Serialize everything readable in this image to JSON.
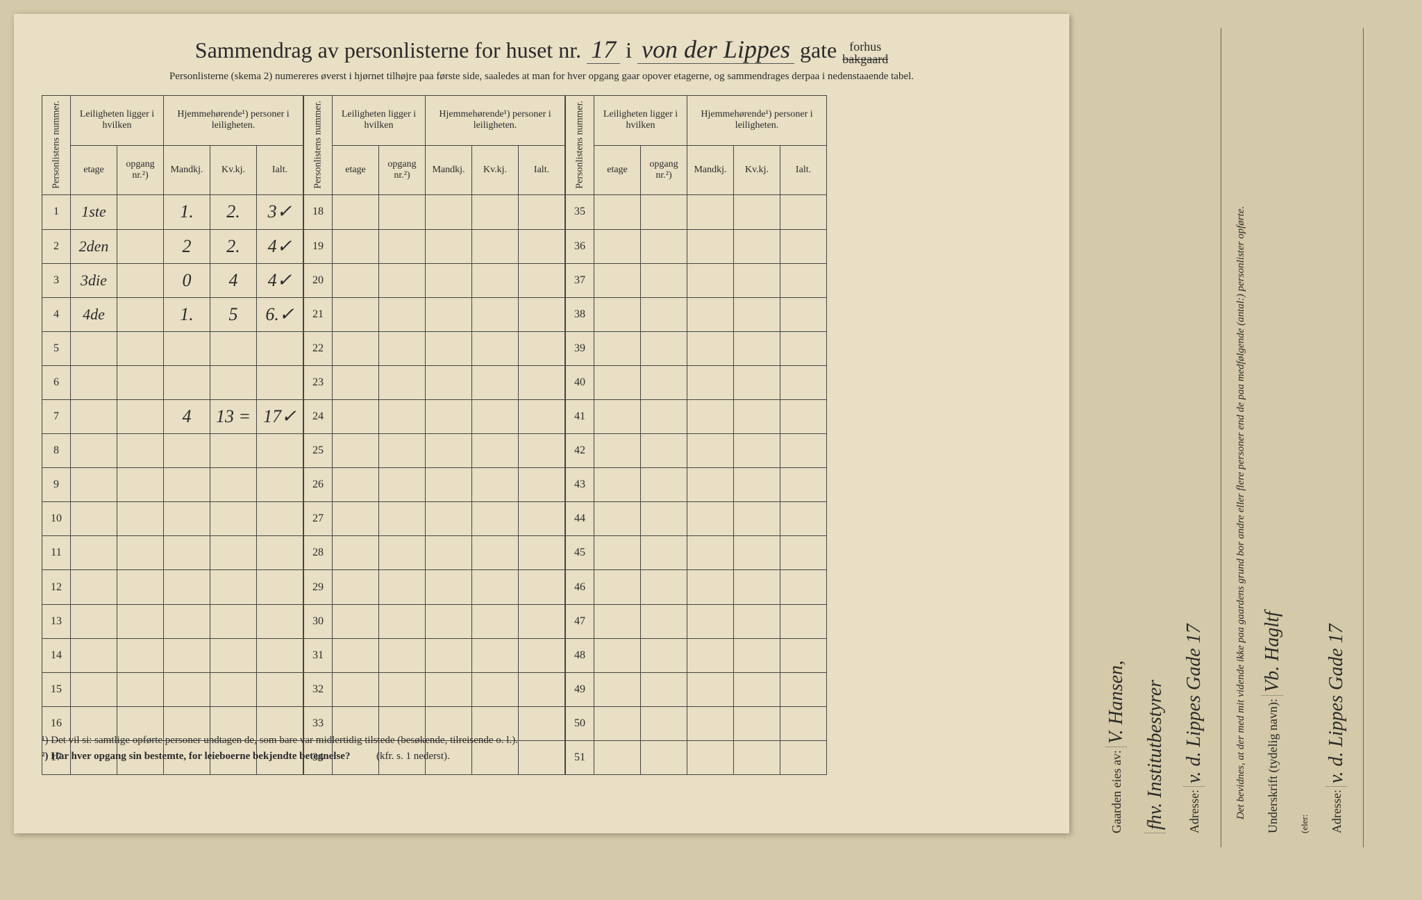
{
  "header": {
    "title_prefix": "Sammendrag av personlisterne for huset nr.",
    "house_nr": "17",
    "middle": "i",
    "street_name": "von der Lippes",
    "street_suffix": "gate",
    "position_top": "forhus",
    "position_bottom_struck": "bakgaard",
    "subtitle": "Personlisterne (skema 2) numereres øverst i hjørnet tilhøjre paa første side, saaledes at man for hver opgang gaar opover etagerne, og sammendrages derpaa i nedenstaaende tabel."
  },
  "columns": {
    "personlist_nr": "Personlistens nummer.",
    "leilighet_group": "Leiligheten ligger i hvilken",
    "etage": "etage",
    "opgang": "opgang nr.²)",
    "hjemme_group": "Hjemmehørende¹) personer i leiligheten.",
    "mandkj": "Mandkj.",
    "kvkj": "Kv.kj.",
    "ialt": "Ialt."
  },
  "block1_rows": [
    1,
    2,
    3,
    4,
    5,
    6,
    7,
    8,
    9,
    10,
    11,
    12,
    13,
    14,
    15,
    16,
    17
  ],
  "block2_rows": [
    18,
    19,
    20,
    21,
    22,
    23,
    24,
    25,
    26,
    27,
    28,
    29,
    30,
    31,
    32,
    33,
    34
  ],
  "block3_rows": [
    35,
    36,
    37,
    38,
    39,
    40,
    41,
    42,
    43,
    44,
    45,
    46,
    47,
    48,
    49,
    50,
    51
  ],
  "data": {
    "1": {
      "etage": "1ste",
      "opgang": "",
      "m": "1.",
      "k": "2.",
      "t": "3✓"
    },
    "2": {
      "etage": "2den",
      "opgang": "",
      "m": "2",
      "k": "2.",
      "t": "4✓"
    },
    "3": {
      "etage": "3die",
      "opgang": "",
      "m": "0",
      "k": "4",
      "t": "4✓"
    },
    "4": {
      "etage": "4de",
      "opgang": "",
      "m": "1.",
      "k": "5",
      "t": "6.✓"
    },
    "7": {
      "etage": "",
      "opgang": "",
      "m": "4",
      "k": "13 =",
      "t": "17✓"
    }
  },
  "footnotes": {
    "f1": "¹) Det vil si: samtlige opførte personer undtagen de, som bare var midlertidig tilstede (besøkende, tilreisende o. l.).",
    "f2": "²) Har hver opgang sin bestemte, for leieboerne bekjendte betegnelse?",
    "f2_ref": "(kfr. s. 1 nederst)."
  },
  "side": {
    "attestation": "Det bevidnes, at der med mit vidende ikke paa gaardens grund bor andre eller flere personer end de paa medfølgende (antal:) personlister opførte.",
    "underskrift_label": "Underskrift (tydelig navn):",
    "underskrift_value": "Vb. Hagltf",
    "eler": "(eler:",
    "adresse_label": "Adresse:",
    "adresse_value": "v. d. Lippes Gade 17",
    "eies_label": "Gaarden eies av:",
    "eies_value": "V. Hansen,",
    "eies_value2": "fhv. Institutbestyrer",
    "adresse2_label": "Adresse:",
    "adresse2_value": "v. d. Lippes Gade 17"
  },
  "style": {
    "paper_bg": "#e8dfc4",
    "ink": "#2a2a2a",
    "hand_ink": "#1a1a1a"
  }
}
